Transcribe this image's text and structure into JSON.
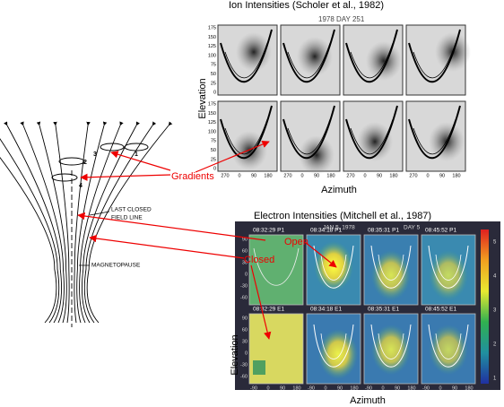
{
  "ion_figure": {
    "title": "Ion Intensities (Scholer et al., 1982)",
    "date_label": "1978 DAY 251",
    "y_axis_label": "Elevation",
    "x_axis_label": "Azimuth",
    "y_ticks": [
      "175",
      "150",
      "125",
      "100",
      "75",
      "50",
      "25",
      "0"
    ],
    "x_ticks": [
      "270",
      "0",
      "90",
      "180"
    ]
  },
  "electron_figure": {
    "title": "Electron Intensities (Mitchell et al., 1987)",
    "date_label": "JAN 5, 1978",
    "day_label": "DAY 5",
    "y_axis_label": "Elevation",
    "x_axis_label": "Azimuth",
    "panel_times": [
      "08:32:29 P1",
      "08:34:18 P1",
      "08:35:31 P1",
      "08:45:52 P1",
      "08:32:29 E1",
      "08:34:18 E1",
      "08:35:31 E1",
      "08:45:52 E1"
    ],
    "y_ticks": [
      "90",
      "60",
      "30",
      "0",
      "-30",
      "-60"
    ],
    "x_ticks": [
      "-90",
      "0",
      "90",
      "180"
    ],
    "colorbar_ticks": [
      "5",
      "4",
      "3",
      "2",
      "1"
    ]
  },
  "diagram": {
    "tube_labels": [
      "1",
      "2",
      "3",
      "4"
    ],
    "last_closed_label": [
      "LAST CLOSED",
      "FIELD LINE"
    ],
    "magnetopause_label": "MAGNETOPAUSE"
  },
  "annotations": {
    "gradients": "Gradients",
    "open": "Open",
    "closed": "Closed"
  }
}
